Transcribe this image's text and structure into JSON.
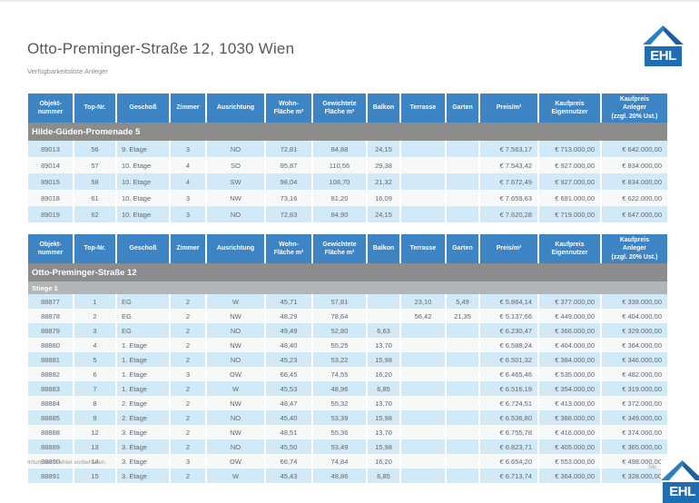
{
  "page": {
    "title": "Otto-Preminger-Straße 12, 1030 Wien",
    "subtitle": "Verfügbarkeitsliste Anleger",
    "footer_left": "Irrtum und Fehler vorbehalten.",
    "footer_right": "Sei",
    "logo_text": "EHL"
  },
  "colors": {
    "header_blue": "#3d84c4",
    "section_gray": "#8c8c8c",
    "subsection_gray": "#b2b5b7",
    "row_light_blue": "#d2eaf7",
    "row_alt": "#f7f8f8",
    "logo_blue": "#1f6db3"
  },
  "columns": [
    "Objekt-\nnummer",
    "Top-Nr.",
    "Geschoß",
    "Zimmer",
    "Ausrichtung",
    "Wohn-\nFläche m²",
    "Gewichtete\nFläche m²",
    "Balkon",
    "Terrasse",
    "Garten",
    "Preis/m²",
    "Kaufpreis\nEigennutzer",
    "Kaufpreis\nAnleger\n(zzgl. 20% Ust.)"
  ],
  "tables": [
    {
      "section": "Hilde-Güden-Promenade 5",
      "subsection": null,
      "rows": [
        [
          "89013",
          "56",
          "9. Etage",
          "3",
          "NO",
          "72,81",
          "84,88",
          "24,15",
          "",
          "",
          "€ 7.563,17",
          "€ 713.000,00",
          "€ 642.000,00"
        ],
        [
          "89014",
          "57",
          "10. Etage",
          "4",
          "SO",
          "95,87",
          "110,56",
          "29,38",
          "",
          "",
          "€ 7.543,42",
          "€ 927.000,00",
          "€ 834.000,00"
        ],
        [
          "89015",
          "58",
          "10. Etage",
          "4",
          "SW",
          "98,04",
          "108,70",
          "21,32",
          "",
          "",
          "€ 7.672,49",
          "€ 927.000,00",
          "€ 834.000,00"
        ],
        [
          "89018",
          "61",
          "10. Etage",
          "3",
          "NW",
          "73,16",
          "81,20",
          "16,09",
          "",
          "",
          "€ 7.659,63",
          "€ 691.000,00",
          "€ 622.000,00"
        ],
        [
          "89019",
          "62",
          "10. Etage",
          "3",
          "NO",
          "72,83",
          "84,90",
          "24,15",
          "",
          "",
          "€ 7.620,28",
          "€ 719.000,00",
          "€ 647.000,00"
        ]
      ]
    },
    {
      "section": "Otto-Preminger-Straße 12",
      "subsection": "Stiege 1",
      "rows": [
        [
          "88877",
          "1",
          "EG",
          "2",
          "W",
          "45,71",
          "57,81",
          "",
          "23,10",
          "5,49",
          "€ 5.864,14",
          "€ 377.000,00",
          "€ 339.000,00"
        ],
        [
          "88878",
          "2",
          "EG",
          "2",
          "NW",
          "48,29",
          "78,64",
          "",
          "56,42",
          "21,35",
          "€ 5.137,66",
          "€ 449.000,00",
          "€ 404.000,00"
        ],
        [
          "88879",
          "3",
          "EG",
          "2",
          "NO",
          "49,49",
          "52,80",
          "6,63",
          "",
          "",
          "€ 6.230,47",
          "€ 366.000,00",
          "€ 329.000,00"
        ],
        [
          "88880",
          "4",
          "1. Etage",
          "2",
          "NW",
          "48,40",
          "55,25",
          "13,70",
          "",
          "",
          "€ 6.588,24",
          "€ 404.000,00",
          "€ 364.000,00"
        ],
        [
          "88881",
          "5",
          "1. Etage",
          "2",
          "NO",
          "45,23",
          "53,22",
          "15,98",
          "",
          "",
          "€ 6.501,32",
          "€ 384.000,00",
          "€ 346.000,00"
        ],
        [
          "88882",
          "6",
          "1. Etage",
          "3",
          "OW",
          "66,45",
          "74,55",
          "16,20",
          "",
          "",
          "€ 6.465,46",
          "€ 535.000,00",
          "€ 482.000,00"
        ],
        [
          "88883",
          "7",
          "1. Etage",
          "2",
          "W",
          "45,53",
          "48,96",
          "6,85",
          "",
          "",
          "€ 6.516,19",
          "€ 354.000,00",
          "€ 319.000,00"
        ],
        [
          "88884",
          "8",
          "2. Etage",
          "2",
          "NW",
          "48,47",
          "55,32",
          "13,70",
          "",
          "",
          "€ 6.724,51",
          "€ 413.000,00",
          "€ 372.000,00"
        ],
        [
          "88885",
          "9",
          "2. Etage",
          "2",
          "NO",
          "45,40",
          "53,39",
          "15,98",
          "",
          "",
          "€ 6.536,80",
          "€ 388.000,00",
          "€ 349.000,00"
        ],
        [
          "88888",
          "12",
          "3. Etage",
          "2",
          "NW",
          "48,51",
          "55,36",
          "13,70",
          "",
          "",
          "€ 6.755,78",
          "€ 416.000,00",
          "€ 374.000,00"
        ],
        [
          "88889",
          "13",
          "3. Etage",
          "2",
          "NO",
          "45,50",
          "53,49",
          "15,98",
          "",
          "",
          "€ 6.823,71",
          "€ 405.000,00",
          "€ 365.000,00"
        ],
        [
          "88890",
          "14",
          "3. Etage",
          "3",
          "OW",
          "66,74",
          "74,84",
          "16,20",
          "",
          "",
          "€ 6.654,20",
          "€ 553.000,00",
          "€ 498.000,00"
        ],
        [
          "88891",
          "15",
          "3. Etage",
          "2",
          "W",
          "45,43",
          "48,86",
          "6,85",
          "",
          "",
          "€ 6.713,74",
          "€ 364.000,00",
          "€ 328.000,00"
        ]
      ]
    }
  ]
}
